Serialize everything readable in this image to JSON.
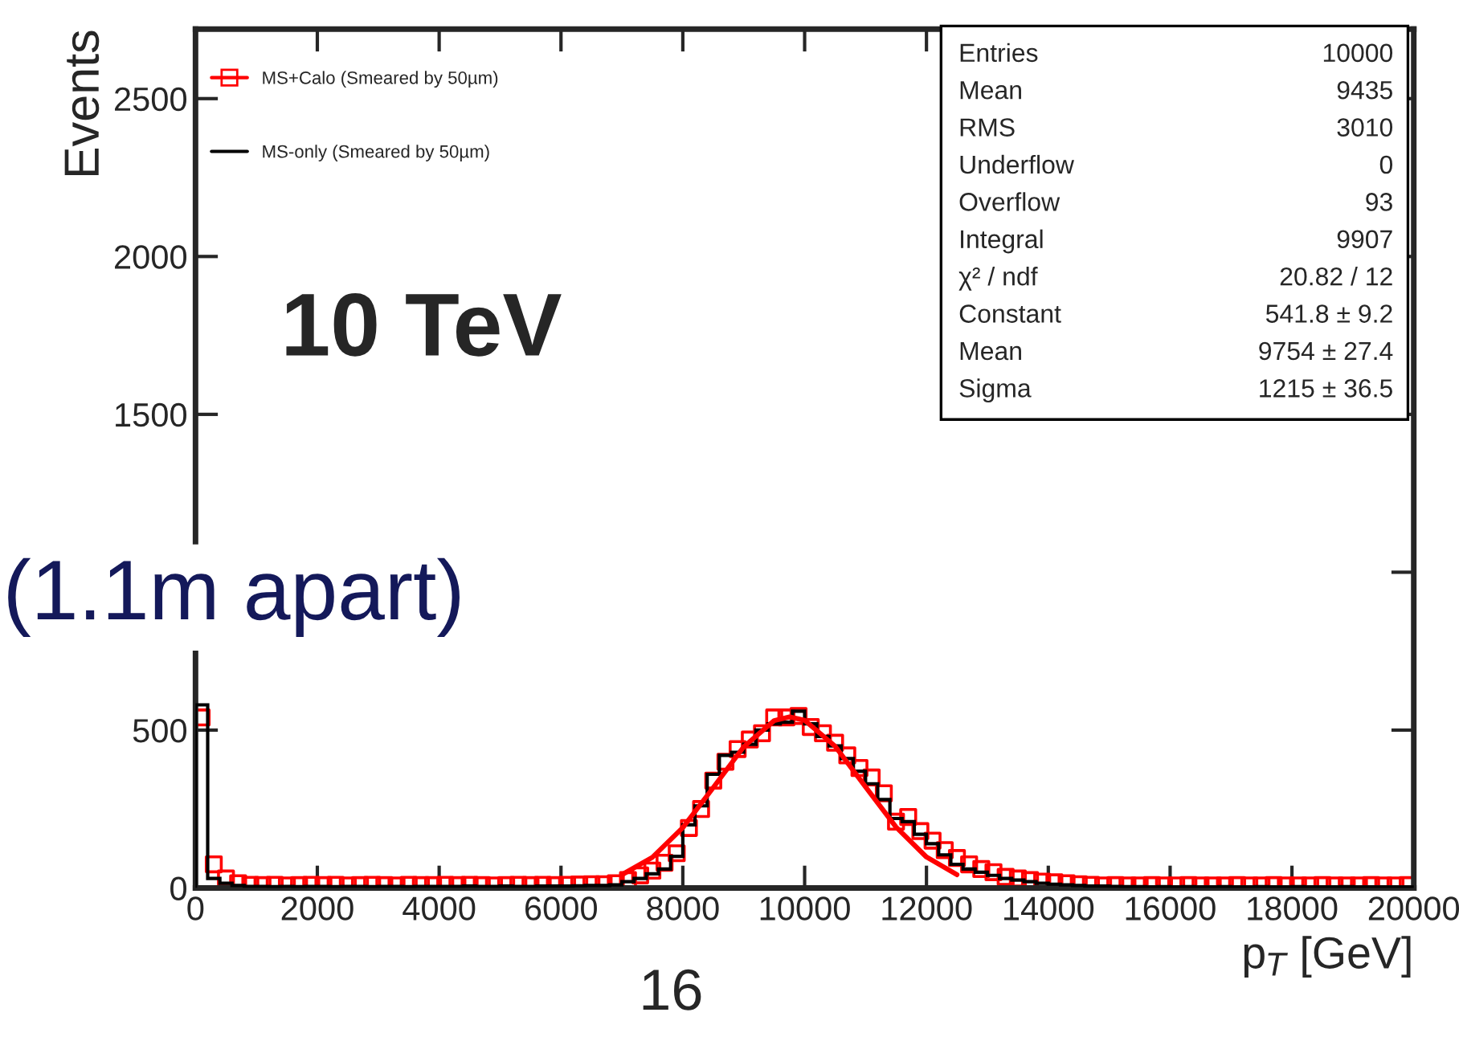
{
  "chart_data": {
    "type": "histogram",
    "xlabel": "p$_{T}$ [GeV]",
    "ylabel": "Events",
    "bins": [
      0,
      200,
      400,
      600,
      800,
      1000,
      1200,
      1400,
      1600,
      1800,
      2000,
      2200,
      2400,
      2600,
      2800,
      3000,
      3200,
      3400,
      3600,
      3800,
      4000,
      4200,
      4400,
      4600,
      4800,
      5000,
      5200,
      5400,
      5600,
      5800,
      6000,
      6200,
      6400,
      6600,
      6800,
      7000,
      7200,
      7400,
      7600,
      7800,
      8000,
      8200,
      8400,
      8600,
      8800,
      9000,
      9200,
      9400,
      9600,
      9800,
      10000,
      10200,
      10400,
      10600,
      10800,
      11000,
      11200,
      11400,
      11600,
      11800,
      12000,
      12200,
      12400,
      12600,
      12800,
      13000,
      13200,
      13400,
      13600,
      13800,
      14000,
      14200,
      14400,
      14600,
      14800,
      15000,
      15200,
      15400,
      15600,
      15800,
      16000,
      16200,
      16400,
      16600,
      16800,
      17000,
      17200,
      17400,
      17600,
      17800,
      18000,
      18200,
      18400,
      18600,
      18800,
      19000,
      19200,
      19400,
      19600,
      19800,
      20000
    ],
    "series": [
      {
        "name": "MS+Calo (Smeared by 50µm)",
        "type": "scatter",
        "marker": "square",
        "color": "#ff0000",
        "x": [
          100,
          300,
          500,
          700,
          900,
          1100,
          1300,
          1500,
          1700,
          1900,
          2100,
          2300,
          2500,
          2700,
          2900,
          3100,
          3300,
          3500,
          3700,
          3900,
          4100,
          4300,
          4500,
          4700,
          4900,
          5100,
          5300,
          5500,
          5700,
          5900,
          6100,
          6300,
          6500,
          6700,
          6900,
          7100,
          7300,
          7500,
          7700,
          7900,
          8100,
          8300,
          8500,
          8700,
          8900,
          9100,
          9300,
          9500,
          9700,
          9900,
          10100,
          10300,
          10500,
          10700,
          10900,
          11100,
          11300,
          11500,
          11700,
          11900,
          12100,
          12300,
          12500,
          12700,
          12900,
          13100,
          13300,
          13500,
          13700,
          13900,
          14100,
          14300,
          14500,
          14700,
          14900,
          15100,
          15300,
          15500,
          15700,
          15900,
          16100,
          16300,
          16500,
          16700,
          16900,
          17100,
          17300,
          17500,
          17700,
          17900,
          18100,
          18300,
          18500,
          18700,
          18900,
          19100,
          19300,
          19500,
          19700,
          19900
        ],
        "values": [
          540,
          75,
          30,
          15,
          10,
          9,
          10,
          8,
          9,
          10,
          9,
          10,
          8,
          9,
          10,
          9,
          8,
          10,
          9,
          9,
          10,
          9,
          10,
          9,
          8,
          9,
          10,
          9,
          10,
          9,
          10,
          11,
          12,
          12,
          15,
          25,
          40,
          55,
          80,
          110,
          190,
          250,
          340,
          400,
          440,
          470,
          490,
          540,
          540,
          545,
          510,
          490,
          460,
          420,
          380,
          350,
          300,
          210,
          225,
          180,
          150,
          120,
          95,
          75,
          60,
          50,
          35,
          30,
          25,
          20,
          18,
          15,
          12,
          10,
          8,
          9,
          8,
          8,
          9,
          8,
          8,
          9,
          8,
          8,
          8,
          9,
          8,
          8,
          9,
          8,
          8,
          8,
          9,
          8,
          8,
          8,
          9,
          8,
          8,
          9
        ]
      },
      {
        "name": "MS-only (Smeared by 50µm)",
        "color": "#000000",
        "values": [
          580,
          30,
          15,
          8,
          5,
          5,
          4,
          5,
          4,
          5,
          5,
          4,
          5,
          5,
          4,
          5,
          5,
          4,
          5,
          5,
          5,
          5,
          6,
          5,
          5,
          6,
          5,
          5,
          6,
          6,
          6,
          7,
          8,
          8,
          10,
          20,
          30,
          45,
          60,
          100,
          200,
          260,
          360,
          420,
          430,
          455,
          500,
          520,
          525,
          560,
          520,
          480,
          450,
          410,
          370,
          330,
          280,
          220,
          210,
          170,
          140,
          105,
          75,
          60,
          50,
          40,
          30,
          25,
          20,
          15,
          12,
          10,
          8,
          6,
          6,
          5,
          4,
          4,
          3,
          4,
          3,
          4,
          3,
          3,
          4,
          3,
          3,
          4,
          3,
          3,
          4,
          3,
          3,
          3,
          4,
          3,
          3,
          3,
          3,
          3
        ]
      },
      {
        "type": "line",
        "color": "#ff0000",
        "x": [
          7000,
          7500,
          8000,
          8500,
          9000,
          9500,
          9754,
          10000,
          10500,
          11000,
          11500,
          12000,
          12500
        ],
        "values": [
          42,
          97,
          191,
          318,
          447,
          530,
          542,
          531,
          449,
          320,
          193,
          98,
          42
        ]
      }
    ],
    "xlim": [
      0,
      20000
    ],
    "ylim": [
      0,
      2720
    ],
    "xticks": [
      0,
      2000,
      4000,
      6000,
      8000,
      10000,
      12000,
      14000,
      16000,
      18000,
      20000
    ],
    "yticks": [
      0,
      500,
      {
        "value": 1000,
        "label": null
      },
      1500,
      2000,
      2500
    ],
    "legend": "top left",
    "grid": false,
    "annotations": [
      "10 TeV",
      "(1.1m apart)",
      "16",
      "Entries\t10000",
      "Mean\t9435",
      "RMS\t3010",
      "Underflow\t0",
      "Overflow\t93",
      "Integral\t9907",
      "χ² / ndf\t20.82 / 12",
      "Constant\t541.8 ± 9.2",
      "Mean\t9754 ± 27.4",
      "Sigma\t1215 ± 36.5"
    ]
  }
}
